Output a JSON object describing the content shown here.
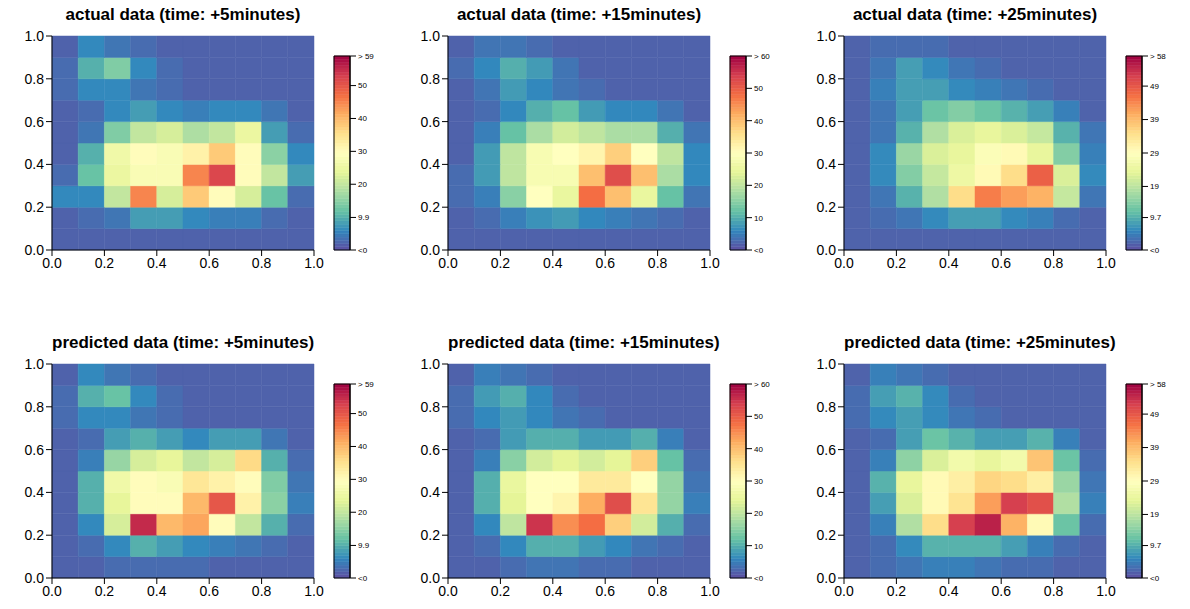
{
  "chart_data": [
    {
      "type": "heatmap",
      "title": "actual data (time: +5minutes)",
      "x_bins": [
        0,
        0.1,
        0.2,
        0.3,
        0.4,
        0.5,
        0.6,
        0.7,
        0.8,
        0.9,
        1
      ],
      "y_bins": [
        0,
        0.1,
        0.2,
        0.3,
        0.4,
        0.5,
        0.6,
        0.7,
        0.8,
        0.9,
        1
      ],
      "z": [
        [
          2,
          2,
          2,
          2,
          2,
          2,
          2,
          2,
          2,
          2
        ],
        [
          2,
          3,
          4,
          8,
          8,
          6,
          5,
          5,
          3,
          2
        ],
        [
          6,
          6,
          20,
          45,
          22,
          38,
          30,
          22,
          12,
          3
        ],
        [
          3,
          12,
          25,
          28,
          28,
          45,
          52,
          30,
          20,
          8
        ],
        [
          2,
          10,
          26,
          30,
          28,
          32,
          38,
          30,
          15,
          6
        ],
        [
          2,
          4,
          14,
          20,
          22,
          18,
          20,
          25,
          8,
          3
        ],
        [
          2,
          3,
          6,
          8,
          6,
          5,
          6,
          6,
          4,
          2
        ],
        [
          3,
          6,
          6,
          4,
          3,
          2,
          2,
          2,
          2,
          2
        ],
        [
          3,
          10,
          14,
          6,
          3,
          2,
          2,
          2,
          2,
          2
        ],
        [
          2,
          6,
          4,
          3,
          2,
          2,
          2,
          2,
          2,
          2
        ]
      ],
      "xlim": [
        0,
        1
      ],
      "ylim": [
        0,
        1
      ],
      "xticks": [
        {
          "value": 0,
          "label": "0.0"
        },
        0.2,
        0.4,
        0.6,
        0.8,
        {
          "value": 1,
          "label": "1.0"
        }
      ],
      "yticks": [
        {
          "value": 0,
          "label": "0.0"
        },
        0.2,
        0.4,
        0.6,
        0.8,
        {
          "value": 1,
          "label": "1.0"
        }
      ],
      "colorbar_lim": [
        0,
        59
      ],
      "colorbar_ticks": [
        {
          "value": 0,
          "label": "<0"
        },
        9.9,
        20,
        30,
        40,
        50,
        {
          "value": 59,
          "label": "> 59"
        }
      ]
    },
    {
      "type": "heatmap",
      "title": "actual data (time: +15minutes)",
      "x_bins": [
        0,
        0.1,
        0.2,
        0.3,
        0.4,
        0.5,
        0.6,
        0.7,
        0.8,
        0.9,
        1
      ],
      "y_bins": [
        0,
        0.1,
        0.2,
        0.3,
        0.4,
        0.5,
        0.6,
        0.7,
        0.8,
        0.9,
        1
      ],
      "z": [
        [
          2,
          2,
          2,
          2,
          2,
          2,
          2,
          2,
          2,
          2
        ],
        [
          2,
          3,
          5,
          7,
          8,
          6,
          5,
          4,
          3,
          2
        ],
        [
          3,
          5,
          15,
          30,
          25,
          48,
          40,
          25,
          12,
          4
        ],
        [
          3,
          8,
          20,
          28,
          28,
          40,
          52,
          40,
          18,
          6
        ],
        [
          2,
          8,
          20,
          28,
          30,
          32,
          38,
          30,
          20,
          6
        ],
        [
          2,
          5,
          12,
          18,
          22,
          20,
          18,
          18,
          10,
          4
        ],
        [
          2,
          3,
          6,
          10,
          12,
          8,
          6,
          6,
          4,
          2
        ],
        [
          2,
          4,
          8,
          6,
          4,
          3,
          2,
          2,
          2,
          2
        ],
        [
          3,
          6,
          10,
          8,
          4,
          2,
          2,
          2,
          2,
          2
        ],
        [
          2,
          4,
          4,
          3,
          2,
          2,
          2,
          2,
          2,
          2
        ]
      ],
      "xlim": [
        0,
        1
      ],
      "ylim": [
        0,
        1
      ],
      "xticks": [
        {
          "value": 0,
          "label": "0.0"
        },
        0.2,
        0.4,
        0.6,
        0.8,
        {
          "value": 1,
          "label": "1.0"
        }
      ],
      "yticks": [
        {
          "value": 0,
          "label": "0.0"
        },
        0.2,
        0.4,
        0.6,
        0.8,
        {
          "value": 1,
          "label": "1.0"
        }
      ],
      "colorbar_lim": [
        0,
        60
      ],
      "colorbar_ticks": [
        {
          "value": 0,
          "label": "<0"
        },
        10,
        20,
        30,
        40,
        50,
        {
          "value": 60,
          "label": "> 60"
        }
      ]
    },
    {
      "type": "heatmap",
      "title": "actual data (time: +25minutes)",
      "x_bins": [
        0,
        0.1,
        0.2,
        0.3,
        0.4,
        0.5,
        0.6,
        0.7,
        0.8,
        0.9,
        1
      ],
      "y_bins": [
        0,
        0.1,
        0.2,
        0.3,
        0.4,
        0.5,
        0.6,
        0.7,
        0.8,
        0.9,
        1
      ],
      "z": [
        [
          2,
          2,
          2,
          2,
          2,
          2,
          2,
          2,
          2,
          2
        ],
        [
          2,
          3,
          4,
          6,
          8,
          8,
          6,
          5,
          3,
          2
        ],
        [
          2,
          4,
          10,
          18,
          35,
          45,
          42,
          40,
          20,
          4
        ],
        [
          2,
          6,
          14,
          20,
          25,
          30,
          35,
          48,
          22,
          6
        ],
        [
          2,
          6,
          16,
          22,
          24,
          28,
          30,
          24,
          14,
          5
        ],
        [
          2,
          4,
          10,
          18,
          22,
          24,
          22,
          20,
          10,
          4
        ],
        [
          2,
          4,
          8,
          12,
          14,
          12,
          10,
          8,
          5,
          2
        ],
        [
          2,
          5,
          8,
          8,
          6,
          5,
          4,
          3,
          2,
          2
        ],
        [
          2,
          4,
          8,
          6,
          4,
          3,
          2,
          2,
          2,
          2
        ],
        [
          2,
          3,
          3,
          3,
          2,
          2,
          2,
          2,
          2,
          2
        ]
      ],
      "xlim": [
        0,
        1
      ],
      "ylim": [
        0,
        1
      ],
      "xticks": [
        {
          "value": 0,
          "label": "0.0"
        },
        0.2,
        0.4,
        0.6,
        0.8,
        {
          "value": 1,
          "label": "1.0"
        }
      ],
      "yticks": [
        {
          "value": 0,
          "label": "0.0"
        },
        0.2,
        0.4,
        0.6,
        0.8,
        {
          "value": 1,
          "label": "1.0"
        }
      ],
      "colorbar_lim": [
        0,
        58
      ],
      "colorbar_ticks": [
        {
          "value": 0,
          "label": "<0"
        },
        9.7,
        19,
        29,
        39,
        49,
        {
          "value": 58,
          "label": "> 58"
        }
      ]
    },
    {
      "type": "heatmap",
      "title": "predicted data (time: +5minutes)",
      "x_bins": [
        0,
        0.1,
        0.2,
        0.3,
        0.4,
        0.5,
        0.6,
        0.7,
        0.8,
        0.9,
        1
      ],
      "y_bins": [
        0,
        0.1,
        0.2,
        0.3,
        0.4,
        0.5,
        0.6,
        0.7,
        0.8,
        0.9,
        1
      ],
      "z": [
        [
          2,
          2,
          3,
          3,
          3,
          3,
          2,
          2,
          2,
          2
        ],
        [
          2,
          3,
          6,
          10,
          8,
          6,
          5,
          4,
          3,
          2
        ],
        [
          2,
          6,
          22,
          55,
          40,
          42,
          30,
          20,
          10,
          3
        ],
        [
          2,
          10,
          24,
          30,
          30,
          40,
          50,
          32,
          15,
          5
        ],
        [
          2,
          10,
          26,
          30,
          28,
          34,
          32,
          30,
          14,
          4
        ],
        [
          2,
          5,
          16,
          22,
          24,
          20,
          22,
          36,
          10,
          3
        ],
        [
          2,
          3,
          8,
          10,
          8,
          6,
          8,
          8,
          4,
          2
        ],
        [
          3,
          6,
          6,
          4,
          3,
          2,
          2,
          2,
          2,
          2
        ],
        [
          3,
          10,
          12,
          6,
          3,
          2,
          2,
          2,
          2,
          2
        ],
        [
          2,
          6,
          4,
          3,
          2,
          2,
          2,
          2,
          2,
          2
        ]
      ],
      "xlim": [
        0,
        1
      ],
      "ylim": [
        0,
        1
      ],
      "xticks": [
        {
          "value": 0,
          "label": "0.0"
        },
        0.2,
        0.4,
        0.6,
        0.8,
        {
          "value": 1,
          "label": "1.0"
        }
      ],
      "yticks": [
        {
          "value": 0,
          "label": "0.0"
        },
        0.2,
        0.4,
        0.6,
        0.8,
        {
          "value": 1,
          "label": "1.0"
        }
      ],
      "colorbar_lim": [
        0,
        59
      ],
      "colorbar_ticks": [
        {
          "value": 0,
          "label": "<0"
        },
        9.9,
        20,
        30,
        40,
        50,
        {
          "value": 59,
          "label": "> 59"
        }
      ]
    },
    {
      "type": "heatmap",
      "title": "predicted data (time: +15minutes)",
      "x_bins": [
        0,
        0.1,
        0.2,
        0.3,
        0.4,
        0.5,
        0.6,
        0.7,
        0.8,
        0.9,
        1
      ],
      "y_bins": [
        0,
        0.1,
        0.2,
        0.3,
        0.4,
        0.5,
        0.6,
        0.7,
        0.8,
        0.9,
        1
      ],
      "z": [
        [
          2,
          2,
          3,
          4,
          4,
          3,
          3,
          2,
          2,
          2
        ],
        [
          2,
          3,
          6,
          10,
          10,
          8,
          6,
          4,
          3,
          2
        ],
        [
          2,
          6,
          20,
          55,
          45,
          48,
          38,
          22,
          10,
          3
        ],
        [
          2,
          10,
          24,
          30,
          32,
          42,
          52,
          35,
          16,
          5
        ],
        [
          2,
          10,
          25,
          30,
          30,
          34,
          34,
          30,
          16,
          4
        ],
        [
          2,
          5,
          15,
          22,
          24,
          22,
          24,
          38,
          12,
          3
        ],
        [
          2,
          3,
          8,
          10,
          10,
          8,
          8,
          10,
          5,
          2
        ],
        [
          3,
          6,
          8,
          6,
          4,
          3,
          2,
          2,
          2,
          2
        ],
        [
          3,
          8,
          10,
          6,
          3,
          2,
          2,
          2,
          2,
          2
        ],
        [
          2,
          5,
          4,
          3,
          2,
          2,
          2,
          2,
          2,
          2
        ]
      ],
      "xlim": [
        0,
        1
      ],
      "ylim": [
        0,
        1
      ],
      "xticks": [
        {
          "value": 0,
          "label": "0.0"
        },
        0.2,
        0.4,
        0.6,
        0.8,
        {
          "value": 1,
          "label": "1.0"
        }
      ],
      "yticks": [
        {
          "value": 0,
          "label": "0.0"
        },
        0.2,
        0.4,
        0.6,
        0.8,
        {
          "value": 1,
          "label": "1.0"
        }
      ],
      "colorbar_lim": [
        0,
        60
      ],
      "colorbar_ticks": [
        {
          "value": 0,
          "label": "<0"
        },
        10,
        20,
        30,
        40,
        50,
        {
          "value": 60,
          "label": "> 60"
        }
      ]
    },
    {
      "type": "heatmap",
      "title": "predicted data (time: +25minutes)",
      "x_bins": [
        0,
        0.1,
        0.2,
        0.3,
        0.4,
        0.5,
        0.6,
        0.7,
        0.8,
        0.9,
        1
      ],
      "y_bins": [
        0,
        0.1,
        0.2,
        0.3,
        0.4,
        0.5,
        0.6,
        0.7,
        0.8,
        0.9,
        1
      ],
      "z": [
        [
          2,
          3,
          4,
          5,
          5,
          4,
          3,
          3,
          2,
          2
        ],
        [
          2,
          3,
          6,
          10,
          10,
          10,
          8,
          5,
          3,
          2
        ],
        [
          2,
          5,
          18,
          35,
          52,
          55,
          40,
          30,
          12,
          3
        ],
        [
          2,
          8,
          22,
          30,
          34,
          42,
          52,
          50,
          18,
          5
        ],
        [
          2,
          10,
          24,
          30,
          32,
          36,
          35,
          32,
          16,
          4
        ],
        [
          2,
          5,
          15,
          22,
          26,
          24,
          26,
          38,
          12,
          3
        ],
        [
          2,
          3,
          8,
          12,
          10,
          8,
          8,
          10,
          5,
          2
        ],
        [
          3,
          6,
          8,
          6,
          4,
          3,
          2,
          2,
          2,
          2
        ],
        [
          3,
          8,
          10,
          6,
          3,
          2,
          2,
          2,
          2,
          2
        ],
        [
          2,
          5,
          4,
          3,
          2,
          2,
          2,
          2,
          2,
          2
        ]
      ],
      "xlim": [
        0,
        1
      ],
      "ylim": [
        0,
        1
      ],
      "xticks": [
        {
          "value": 0,
          "label": "0.0"
        },
        0.2,
        0.4,
        0.6,
        0.8,
        {
          "value": 1,
          "label": "1.0"
        }
      ],
      "yticks": [
        {
          "value": 0,
          "label": "0.0"
        },
        0.2,
        0.4,
        0.6,
        0.8,
        {
          "value": 1,
          "label": "1.0"
        }
      ],
      "colorbar_lim": [
        0,
        58
      ],
      "colorbar_ticks": [
        {
          "value": 0,
          "label": "<0"
        },
        9.7,
        19,
        29,
        39,
        49,
        {
          "value": 58,
          "label": "> 58"
        }
      ]
    }
  ]
}
